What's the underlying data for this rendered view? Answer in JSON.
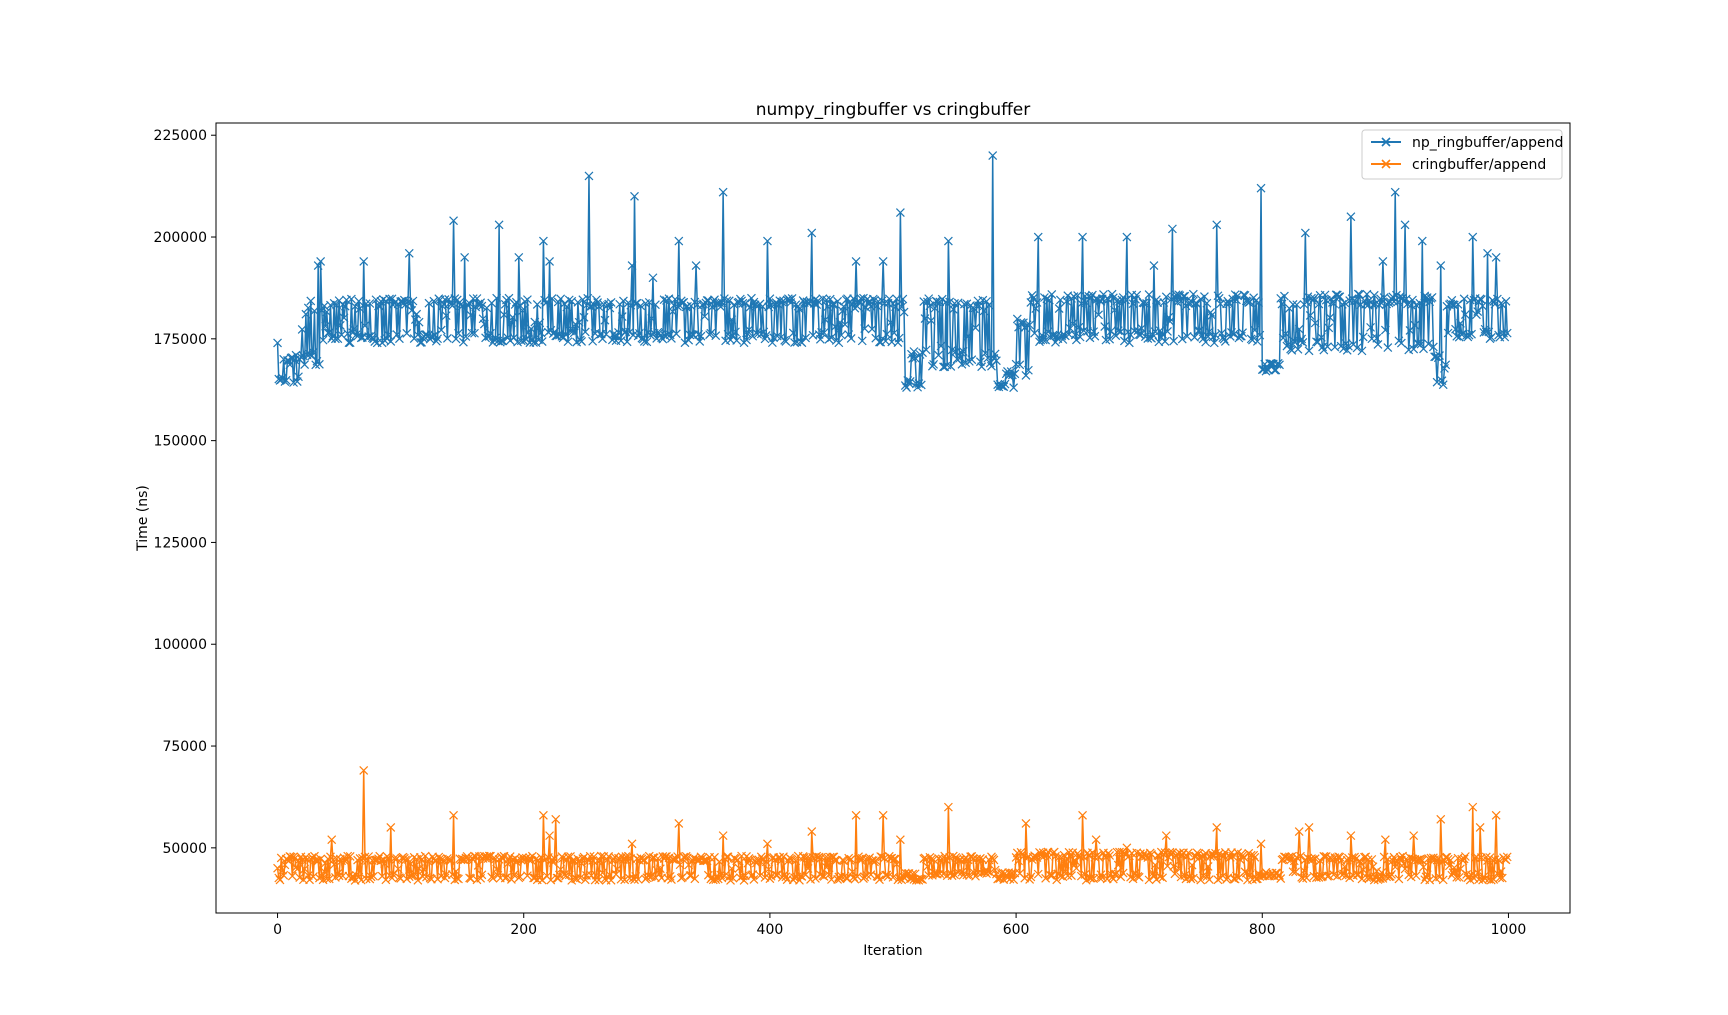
{
  "chart_data": {
    "type": "line",
    "title": "numpy_ringbuffer vs cringbuffer",
    "xlabel": "Iteration",
    "ylabel": "Time (ns)",
    "xlim": [
      -50,
      1050
    ],
    "ylim": [
      34000,
      228000
    ],
    "xticks": [
      0,
      200,
      400,
      600,
      800,
      1000
    ],
    "yticks": [
      50000,
      75000,
      100000,
      125000,
      150000,
      175000,
      200000,
      225000
    ],
    "legend_position": "top-right",
    "marker": "x",
    "series": [
      {
        "name": "np_ringbuffer/append",
        "color": "#1f77b4",
        "n_points": 1000,
        "base_segments": [
          {
            "from": 0,
            "to": 20,
            "low": 164000,
            "high": 171000
          },
          {
            "from": 20,
            "to": 35,
            "low": 168000,
            "high": 185000
          },
          {
            "from": 35,
            "to": 510,
            "low": 174000,
            "high": 185000
          },
          {
            "from": 510,
            "to": 525,
            "low": 163000,
            "high": 172000
          },
          {
            "from": 525,
            "to": 585,
            "low": 168000,
            "high": 185000
          },
          {
            "from": 585,
            "to": 600,
            "low": 163000,
            "high": 167000
          },
          {
            "from": 600,
            "to": 612,
            "low": 166000,
            "high": 180000
          },
          {
            "from": 612,
            "to": 800,
            "low": 174000,
            "high": 186000
          },
          {
            "from": 800,
            "to": 815,
            "low": 167000,
            "high": 169000
          },
          {
            "from": 815,
            "to": 940,
            "low": 172000,
            "high": 186000
          },
          {
            "from": 940,
            "to": 950,
            "low": 163000,
            "high": 172000
          },
          {
            "from": 950,
            "to": 1000,
            "low": 175000,
            "high": 185000
          }
        ],
        "spikes": [
          {
            "x": 0,
            "y": 174000
          },
          {
            "x": 33,
            "y": 193000
          },
          {
            "x": 35,
            "y": 194000
          },
          {
            "x": 70,
            "y": 194000
          },
          {
            "x": 107,
            "y": 196000
          },
          {
            "x": 143,
            "y": 204000
          },
          {
            "x": 152,
            "y": 195000
          },
          {
            "x": 180,
            "y": 203000
          },
          {
            "x": 196,
            "y": 195000
          },
          {
            "x": 216,
            "y": 199000
          },
          {
            "x": 221,
            "y": 194000
          },
          {
            "x": 253,
            "y": 215000
          },
          {
            "x": 288,
            "y": 193000
          },
          {
            "x": 290,
            "y": 210000
          },
          {
            "x": 305,
            "y": 190000
          },
          {
            "x": 326,
            "y": 199000
          },
          {
            "x": 340,
            "y": 193000
          },
          {
            "x": 362,
            "y": 211000
          },
          {
            "x": 398,
            "y": 199000
          },
          {
            "x": 434,
            "y": 201000
          },
          {
            "x": 470,
            "y": 194000
          },
          {
            "x": 492,
            "y": 194000
          },
          {
            "x": 506,
            "y": 206000
          },
          {
            "x": 545,
            "y": 199000
          },
          {
            "x": 581,
            "y": 220000
          },
          {
            "x": 618,
            "y": 200000
          },
          {
            "x": 654,
            "y": 200000
          },
          {
            "x": 690,
            "y": 200000
          },
          {
            "x": 712,
            "y": 193000
          },
          {
            "x": 727,
            "y": 202000
          },
          {
            "x": 763,
            "y": 203000
          },
          {
            "x": 799,
            "y": 212000
          },
          {
            "x": 835,
            "y": 201000
          },
          {
            "x": 872,
            "y": 205000
          },
          {
            "x": 898,
            "y": 194000
          },
          {
            "x": 908,
            "y": 211000
          },
          {
            "x": 916,
            "y": 203000
          },
          {
            "x": 930,
            "y": 199000
          },
          {
            "x": 945,
            "y": 193000
          },
          {
            "x": 971,
            "y": 200000
          },
          {
            "x": 983,
            "y": 196000
          },
          {
            "x": 990,
            "y": 195000
          }
        ]
      },
      {
        "name": "cringbuffer/append",
        "color": "#ff7f0e",
        "n_points": 1000,
        "base_segments": [
          {
            "from": 0,
            "to": 510,
            "low": 42000,
            "high": 48000
          },
          {
            "from": 510,
            "to": 525,
            "low": 42000,
            "high": 44000
          },
          {
            "from": 525,
            "to": 585,
            "low": 43000,
            "high": 48000
          },
          {
            "from": 585,
            "to": 600,
            "low": 42000,
            "high": 44000
          },
          {
            "from": 600,
            "to": 800,
            "low": 42000,
            "high": 49000
          },
          {
            "from": 800,
            "to": 815,
            "low": 43000,
            "high": 44000
          },
          {
            "from": 815,
            "to": 1000,
            "low": 42000,
            "high": 48000
          }
        ],
        "spikes": [
          {
            "x": 0,
            "y": 45000
          },
          {
            "x": 44,
            "y": 52000
          },
          {
            "x": 70,
            "y": 69000
          },
          {
            "x": 92,
            "y": 55000
          },
          {
            "x": 143,
            "y": 58000
          },
          {
            "x": 216,
            "y": 58000
          },
          {
            "x": 221,
            "y": 53000
          },
          {
            "x": 226,
            "y": 57000
          },
          {
            "x": 288,
            "y": 51000
          },
          {
            "x": 326,
            "y": 56000
          },
          {
            "x": 362,
            "y": 53000
          },
          {
            "x": 398,
            "y": 51000
          },
          {
            "x": 434,
            "y": 54000
          },
          {
            "x": 470,
            "y": 58000
          },
          {
            "x": 492,
            "y": 58000
          },
          {
            "x": 506,
            "y": 52000
          },
          {
            "x": 545,
            "y": 60000
          },
          {
            "x": 608,
            "y": 56000
          },
          {
            "x": 654,
            "y": 58000
          },
          {
            "x": 665,
            "y": 52000
          },
          {
            "x": 690,
            "y": 50000
          },
          {
            "x": 722,
            "y": 53000
          },
          {
            "x": 763,
            "y": 55000
          },
          {
            "x": 799,
            "y": 51000
          },
          {
            "x": 830,
            "y": 54000
          },
          {
            "x": 838,
            "y": 55000
          },
          {
            "x": 872,
            "y": 53000
          },
          {
            "x": 900,
            "y": 52000
          },
          {
            "x": 923,
            "y": 53000
          },
          {
            "x": 945,
            "y": 57000
          },
          {
            "x": 971,
            "y": 60000
          },
          {
            "x": 977,
            "y": 55000
          },
          {
            "x": 990,
            "y": 58000
          }
        ]
      }
    ]
  }
}
